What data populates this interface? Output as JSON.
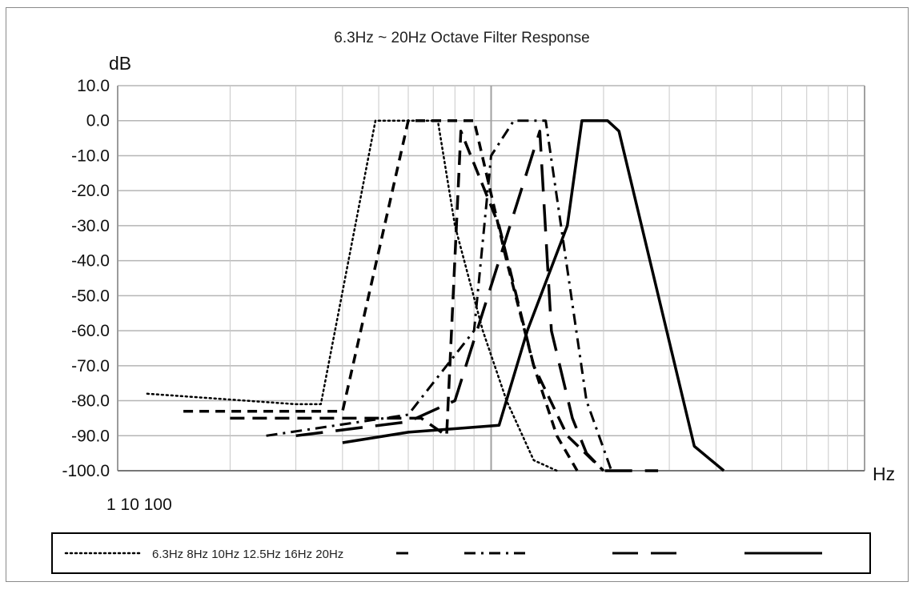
{
  "chart_data": {
    "type": "line",
    "title": "6.3Hz ~ 20Hz Octave Filter Response",
    "ylabel": "dB",
    "xlabel": "Hz",
    "xscale": "log",
    "x_tick_labels_text": "1 10 100",
    "ylim": [
      -100,
      10
    ],
    "y_ticks": [
      "10.0",
      "0.0",
      "-10.0",
      "-20.0",
      "-30.0",
      "-40.0",
      "-50.0",
      "-60.0",
      "-70.0",
      "-80.0",
      "-90.0",
      "-100.0"
    ],
    "grid": true,
    "legend_placement": "bottom",
    "series": [
      {
        "name": "6.3Hz",
        "style": "dotted",
        "x": [
          1.2,
          3.0,
          3.5,
          4.9,
          5.5,
          6.3,
          7.2,
          8.0,
          9.5,
          11.0,
          13.0,
          15.0
        ],
        "y": [
          -78,
          -81,
          -81,
          0,
          0,
          0,
          0,
          -30,
          -60,
          -80,
          -97,
          -100
        ]
      },
      {
        "name": "8Hz",
        "style": "dash-short",
        "x": [
          1.5,
          3.7,
          4.0,
          6.0,
          6.5,
          8.0,
          9.0,
          11.0,
          13.0,
          15.0,
          17.0
        ],
        "y": [
          -83,
          -83,
          -83,
          0,
          0,
          0,
          0,
          -40,
          -70,
          -90,
          -100
        ]
      },
      {
        "name": "10Hz",
        "style": "dash-medium",
        "x": [
          2.0,
          4.5,
          6.5,
          7.6,
          8.3,
          10.5,
          13.0,
          16.0,
          20.0
        ],
        "y": [
          -85,
          -85,
          -85,
          -90,
          -3,
          -30,
          -70,
          -90,
          -100
        ]
      },
      {
        "name": "12.5Hz",
        "style": "dash-dot",
        "x": [
          2.5,
          6.0,
          9.0,
          10.0,
          11.5,
          12.0,
          12.5,
          13.0,
          14.0,
          18.0,
          21.0
        ],
        "y": [
          -90,
          -84,
          -60,
          -10,
          0,
          0,
          0,
          0,
          0,
          -80,
          -100
        ]
      },
      {
        "name": "16Hz",
        "style": "dash-long",
        "x": [
          3.0,
          6.0,
          8.0,
          10.5,
          13.5,
          14.5,
          16.5,
          18.0,
          20.0,
          24.0,
          28.0
        ],
        "y": [
          -90,
          -86,
          -80,
          -40,
          -3,
          -60,
          -85,
          -95,
          -100,
          -100,
          -100
        ]
      },
      {
        "name": "20Hz",
        "style": "solid",
        "x": [
          4.0,
          6.0,
          8.0,
          10.5,
          12.5,
          16.0,
          17.5,
          19.0,
          20.5,
          22.0,
          35.0,
          42.0
        ],
        "y": [
          -92,
          -89,
          -88,
          -87,
          -60,
          -30,
          0,
          0,
          0,
          -3,
          -93,
          -100
        ]
      }
    ],
    "legend_text": "6.3Hz 8Hz 10Hz 12.5Hz 16Hz 20Hz"
  }
}
